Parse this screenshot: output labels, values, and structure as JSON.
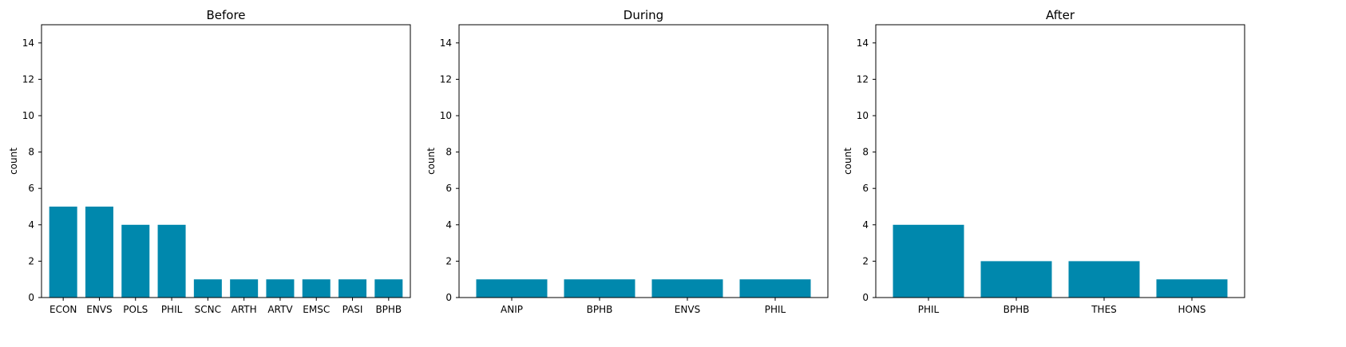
{
  "chart_data": [
    {
      "type": "bar",
      "title": "Before",
      "xlabel": "",
      "ylabel": "count",
      "ylim": [
        0,
        15
      ],
      "yticks": [
        0,
        2,
        4,
        6,
        8,
        10,
        12,
        14
      ],
      "grid": false,
      "bar_color": "#0088ad",
      "categories": [
        "ECON",
        "ENVS",
        "POLS",
        "PHIL",
        "SCNC",
        "ARTH",
        "ARTV",
        "EMSC",
        "PASI",
        "BPHB"
      ],
      "values": [
        5,
        5,
        4,
        4,
        1,
        1,
        1,
        1,
        1,
        1
      ]
    },
    {
      "type": "bar",
      "title": "During",
      "xlabel": "",
      "ylabel": "count",
      "ylim": [
        0,
        15
      ],
      "yticks": [
        0,
        2,
        4,
        6,
        8,
        10,
        12,
        14
      ],
      "grid": false,
      "bar_color": "#0088ad",
      "categories": [
        "ANIP",
        "BPHB",
        "ENVS",
        "PHIL"
      ],
      "values": [
        1,
        1,
        1,
        1
      ]
    },
    {
      "type": "bar",
      "title": "After",
      "xlabel": "",
      "ylabel": "count",
      "ylim": [
        0,
        15
      ],
      "yticks": [
        0,
        2,
        4,
        6,
        8,
        10,
        12,
        14
      ],
      "grid": false,
      "bar_color": "#0088ad",
      "categories": [
        "PHIL",
        "BPHB",
        "THES",
        "HONS"
      ],
      "values": [
        4,
        2,
        2,
        1
      ]
    }
  ]
}
